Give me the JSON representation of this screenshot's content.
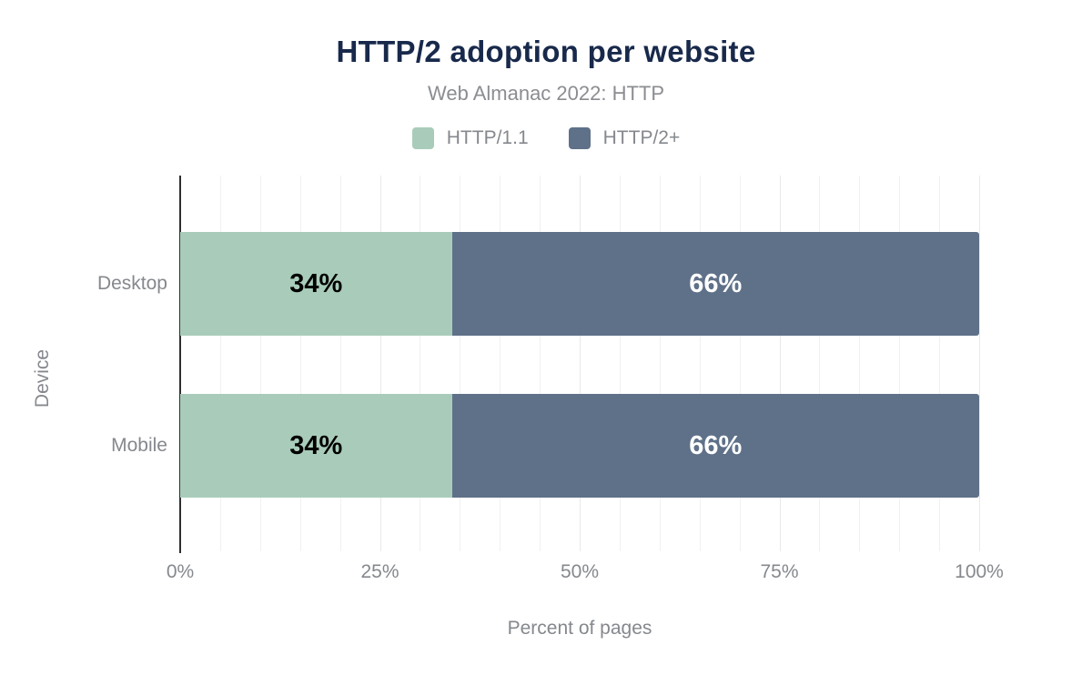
{
  "chart_data": {
    "type": "bar",
    "orientation": "horizontal",
    "stacked": true,
    "title": "HTTP/2 adoption per website",
    "subtitle": "Web Almanac 2022: HTTP",
    "xlabel": "Percent of pages",
    "ylabel": "Device",
    "categories": [
      "Desktop",
      "Mobile"
    ],
    "series": [
      {
        "name": "HTTP/1.1",
        "color": "#a9ccba",
        "label_color": "#000000",
        "values": [
          34,
          34
        ],
        "value_labels": [
          "34%",
          "34%"
        ]
      },
      {
        "name": "HTTP/2+",
        "color": "#5f7189",
        "label_color": "#ffffff",
        "values": [
          66,
          66
        ],
        "value_labels": [
          "66%",
          "66%"
        ]
      }
    ],
    "xlim": [
      0,
      100
    ],
    "xticks": [
      {
        "value": 0,
        "label": "0%"
      },
      {
        "value": 25,
        "label": "25%"
      },
      {
        "value": 50,
        "label": "50%"
      },
      {
        "value": 75,
        "label": "75%"
      },
      {
        "value": 100,
        "label": "100%"
      }
    ],
    "grid": {
      "vertical_minor_step": 5,
      "vertical_major_step": 25,
      "minor_color": "#f1f1f1",
      "major_color": "#e9e9e9",
      "horizontal": false
    },
    "legend_position": "top-center",
    "colors": {
      "title": "#18294b",
      "subtitle": "#8b8d91",
      "axis_text": "#85888d",
      "axis_line": "#2e2e2e",
      "background": "#ffffff"
    }
  }
}
